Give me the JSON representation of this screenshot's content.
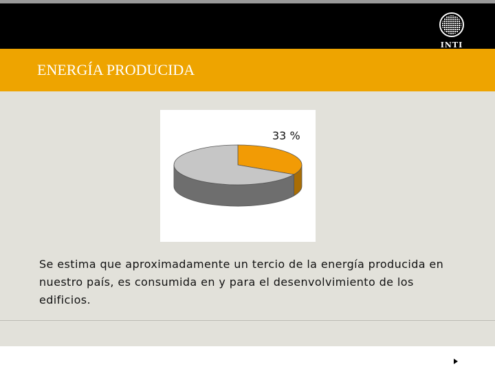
{
  "header": {
    "logo_text": "INTI",
    "logo_icon": "grid-circle-logo-icon"
  },
  "slide": {
    "title": "ENERGÍA PRODUCIDA",
    "body": "Se estima que aproximadamente un tercio de la energía producida en nuestro país, es consumida en y para el desenvolvimiento de los edificios."
  },
  "chart_data": {
    "type": "pie",
    "style": "3d",
    "slices": [
      {
        "label": "33 %",
        "value": 33,
        "color": "#f29b05"
      },
      {
        "label": "",
        "value": 67,
        "color": "#c6c6c6"
      }
    ],
    "data_labels": [
      "33 %"
    ]
  },
  "footer": {
    "next_icon": "play-triangle-icon"
  }
}
